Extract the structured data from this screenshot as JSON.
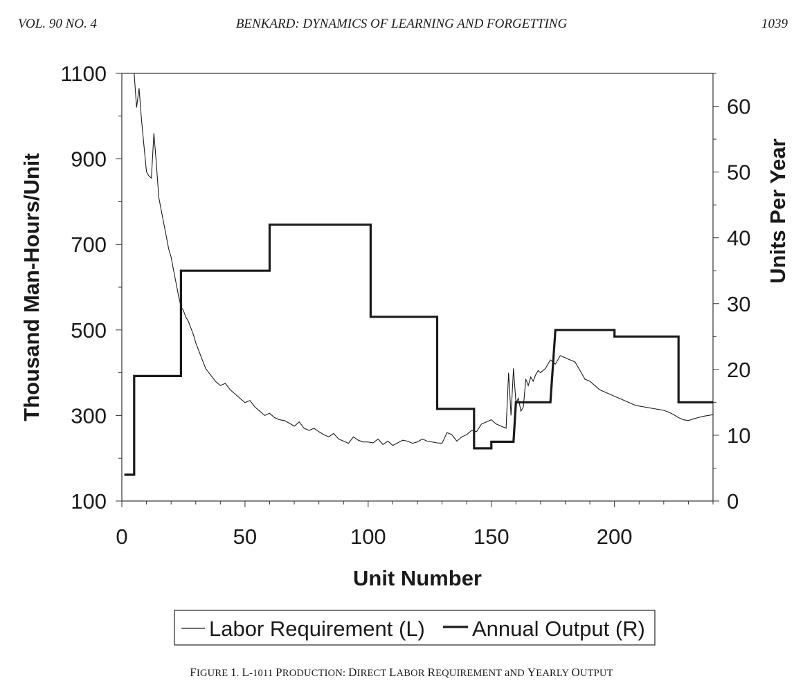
{
  "running_head": {
    "left": "VOL. 90 NO. 4",
    "center": "BENKARD: DYNAMICS OF LEARNING AND FORGETTING",
    "right": "1039"
  },
  "caption": "Figure 1. L-1011 Production: Direct Labor Requirement and Yearly Output",
  "chart_data": {
    "type": "line",
    "xlabel": "Unit Number",
    "ylabel_left": "Thousand Man-Hours/Unit",
    "ylabel_right": "Units Per Year",
    "xlim": [
      0,
      240
    ],
    "ylim_left": [
      100,
      1100
    ],
    "ylim_right": [
      0,
      65
    ],
    "x_ticks": [
      0,
      50,
      100,
      150,
      200
    ],
    "y_left_ticks": [
      100,
      300,
      500,
      700,
      900,
      1100
    ],
    "y_right_ticks": [
      0,
      10,
      20,
      30,
      40,
      50,
      60
    ],
    "grid": false,
    "legend_position": "bottom",
    "series": [
      {
        "name": "Labor Requirement (L)",
        "axis": "left",
        "style": "thin",
        "x": [
          5,
          6,
          7,
          8,
          9,
          10,
          11,
          12,
          13,
          14,
          15,
          16,
          17,
          18,
          19,
          20,
          21,
          22,
          23,
          24,
          25,
          26,
          27,
          28,
          29,
          30,
          32,
          34,
          36,
          38,
          40,
          42,
          44,
          46,
          48,
          50,
          52,
          54,
          56,
          58,
          60,
          62,
          64,
          66,
          68,
          70,
          72,
          74,
          76,
          78,
          80,
          82,
          84,
          86,
          88,
          90,
          92,
          94,
          96,
          98,
          100,
          102,
          104,
          106,
          108,
          110,
          112,
          114,
          116,
          118,
          120,
          122,
          124,
          126,
          128,
          130,
          132,
          134,
          136,
          138,
          140,
          142,
          144,
          146,
          148,
          150,
          152,
          154,
          156,
          157,
          158,
          159,
          160,
          161,
          162,
          163,
          164,
          165,
          166,
          167,
          168,
          169,
          170,
          172,
          174,
          176,
          178,
          180,
          182,
          184,
          186,
          188,
          190,
          192,
          194,
          196,
          198,
          200,
          202,
          204,
          206,
          208,
          210,
          212,
          214,
          216,
          218,
          220,
          222,
          224,
          226,
          228,
          230,
          232,
          234,
          236,
          238,
          240
        ],
        "values": [
          1100,
          1020,
          1065,
          990,
          930,
          870,
          860,
          855,
          960,
          890,
          810,
          780,
          750,
          720,
          690,
          670,
          640,
          610,
          580,
          555,
          545,
          530,
          520,
          505,
          490,
          470,
          440,
          410,
          395,
          380,
          370,
          375,
          360,
          350,
          340,
          330,
          335,
          320,
          310,
          300,
          305,
          295,
          290,
          288,
          282,
          275,
          285,
          270,
          265,
          270,
          262,
          255,
          250,
          258,
          245,
          240,
          235,
          250,
          242,
          238,
          238,
          236,
          245,
          232,
          240,
          230,
          236,
          242,
          240,
          235,
          238,
          245,
          240,
          238,
          236,
          235,
          260,
          255,
          240,
          250,
          255,
          265,
          262,
          280,
          285,
          290,
          280,
          275,
          270,
          400,
          300,
          410,
          330,
          340,
          310,
          320,
          385,
          370,
          390,
          380,
          395,
          405,
          400,
          410,
          430,
          420,
          440,
          435,
          430,
          425,
          405,
          385,
          380,
          370,
          360,
          355,
          350,
          345,
          340,
          335,
          330,
          325,
          322,
          320,
          318,
          316,
          314,
          312,
          308,
          302,
          295,
          290,
          288,
          292,
          295,
          298,
          300,
          302
        ]
      },
      {
        "name": "Annual Output (R)",
        "axis": "right",
        "style": "thick",
        "x": [
          1,
          4,
          4,
          5,
          5,
          24,
          24,
          59,
          59,
          60,
          60,
          101,
          101,
          128,
          128,
          143,
          143,
          150,
          150,
          159,
          159,
          160,
          160,
          174,
          174,
          176,
          176,
          200,
          200,
          226,
          226,
          240
        ],
        "values": [
          4,
          4,
          4,
          4,
          19,
          19,
          35,
          35,
          35,
          35,
          42,
          42,
          28,
          28,
          14,
          14,
          8,
          8,
          9,
          9,
          9,
          15,
          15,
          15,
          15,
          26,
          26,
          26,
          25,
          25,
          15,
          15
        ]
      }
    ]
  }
}
